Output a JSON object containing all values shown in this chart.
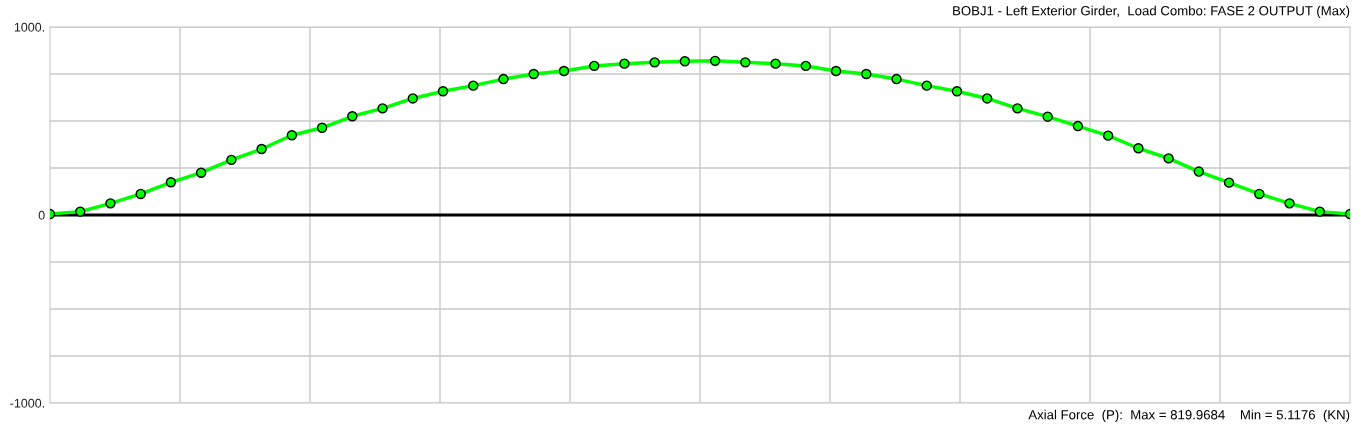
{
  "chart_data": {
    "type": "line",
    "title": "BOBJ1 - Left Exterior Girder,  Load Combo: FASE 2 OUTPUT (Max)",
    "annotations": [
      "Axial Force  (P):  Max = 819.9684    Min = 5.1176  (KN)"
    ],
    "categories": [
      null,
      null,
      null,
      null,
      null,
      null,
      null,
      null,
      null,
      null,
      null,
      null,
      null,
      null,
      null,
      null,
      null,
      null,
      null,
      null,
      null,
      null,
      null,
      null,
      null,
      null,
      null,
      null,
      null,
      null,
      null,
      null,
      null,
      null,
      null,
      null,
      null,
      null,
      null,
      null,
      null,
      null,
      null,
      null
    ],
    "series": [
      {
        "color": "#00ff00",
        "values": [
          5,
          18,
          62,
          112,
          174,
          225,
          293,
          351,
          424,
          464,
          525,
          567,
          620,
          658,
          688,
          723,
          750,
          766,
          793,
          805,
          812,
          818,
          820,
          812,
          805,
          793,
          766,
          750,
          723,
          688,
          658,
          620,
          567,
          523,
          473,
          422,
          355,
          301,
          231,
          172,
          112,
          62,
          18,
          5
        ]
      }
    ],
    "ylim": [
      -1000,
      1000
    ],
    "yticks": [
      {
        "value": -1000,
        "label": "-1000."
      },
      {
        "value": -750,
        "label": null
      },
      {
        "value": -500,
        "label": null
      },
      {
        "value": -250,
        "label": null
      },
      0,
      {
        "value": 250,
        "label": null
      },
      {
        "value": 500,
        "label": null
      },
      {
        "value": 750,
        "label": null
      },
      {
        "value": 1000,
        "label": "1000."
      }
    ],
    "ref_lines": [
      {
        "axis": "y",
        "value": 0,
        "color": "#000000"
      }
    ],
    "grid": true,
    "marker": "circle",
    "line_style": "solid"
  }
}
